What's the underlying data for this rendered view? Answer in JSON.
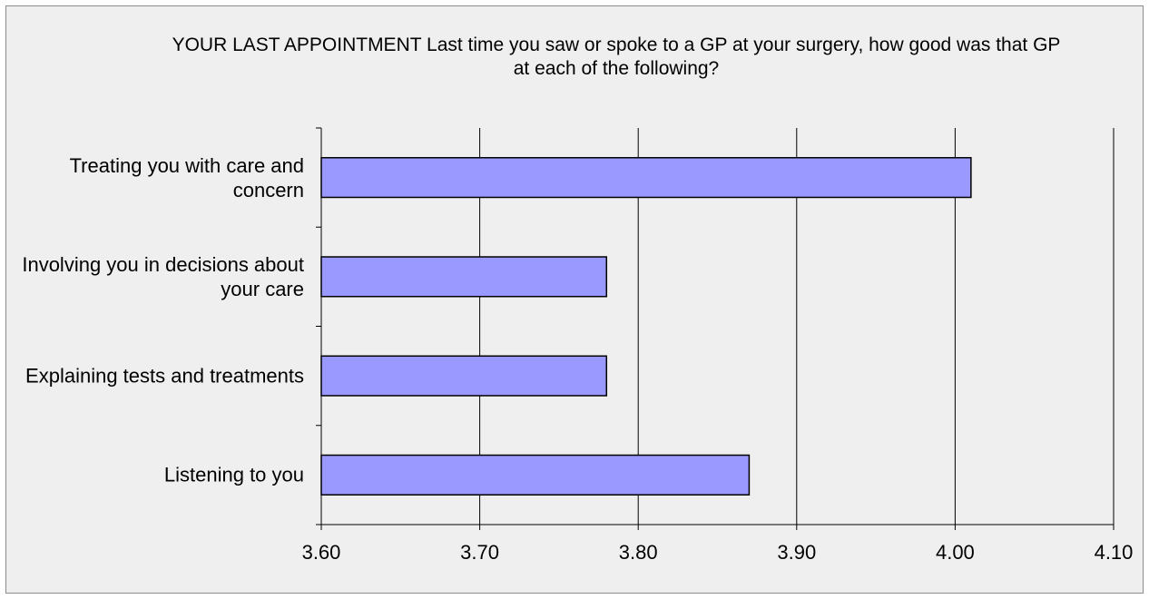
{
  "chart_data": {
    "type": "bar",
    "orientation": "horizontal",
    "title": "YOUR LAST APPOINTMENT Last time you saw or spoke to a GP at your surgery, how good was that GP at each of the following?",
    "categories": [
      "Treating you with care and concern",
      "Involving you in decisions about your care",
      "Explaining tests and treatments",
      "Listening to you"
    ],
    "values": [
      4.01,
      3.78,
      3.78,
      3.87
    ],
    "color": "#9999ff",
    "xlim": [
      3.6,
      4.1
    ],
    "xticks": [
      {
        "value": 3.6,
        "label": "3.60"
      },
      {
        "value": 3.7,
        "label": "3.70"
      },
      {
        "value": 3.8,
        "label": "3.80"
      },
      {
        "value": 3.9,
        "label": "3.90"
      },
      {
        "value": 4.0,
        "label": "4.00"
      },
      {
        "value": 4.1,
        "label": "4.10"
      }
    ],
    "grid": true
  }
}
